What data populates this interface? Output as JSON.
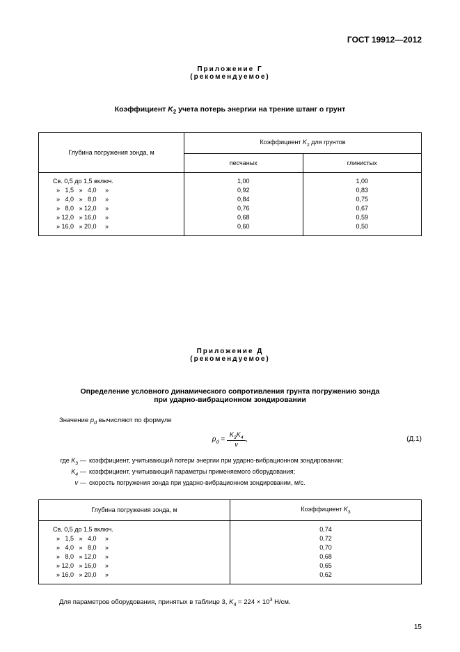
{
  "doc_header": "ГОСТ 19912—2012",
  "appendix_g": {
    "title": "Приложение Г",
    "subtitle": "(рекомендуемое)",
    "section_title_pre": "Коэффициент ",
    "section_title_var": "K",
    "section_title_sub": "2",
    "section_title_post": " учета потерь энергии на трение штанг о грунт",
    "table": {
      "col1_header": "Глубина погружения зонда, м",
      "col_group_pre": "Коэффициент ",
      "col_group_var": "K",
      "col_group_sub": "2",
      "col_group_post": " для грунтов",
      "sub_col_a": "песчаных",
      "sub_col_b": "глинистых",
      "rows": [
        {
          "depth": "Св. 0,5 до 1,5 включ.",
          "a": "1,00",
          "b": "1,00"
        },
        {
          "depth": "  »   1,5   »   4,0     »",
          "a": "0,92",
          "b": "0,83"
        },
        {
          "depth": "  »   4,0   »   8,0     »",
          "a": "0,84",
          "b": "0,75"
        },
        {
          "depth": "  »   8,0   » 12,0     »",
          "a": "0,76",
          "b": "0,67"
        },
        {
          "depth": "  » 12,0   » 16,0     »",
          "a": "0,68",
          "b": "0,59"
        },
        {
          "depth": "  » 16,0   » 20,0     »",
          "a": "0,60",
          "b": "0,50"
        }
      ]
    }
  },
  "appendix_d": {
    "title": "Приложение Д",
    "subtitle": "(рекомендуемое)",
    "section_title_line1": "Определение условного динамического сопротивления грунта погружению зонда",
    "section_title_line2": "при ударно-вибрационном зондировании",
    "para_intro_pre": "Значение ",
    "para_intro_var": "p",
    "para_intro_sub": "d",
    "para_intro_post": " вычисляют по формуле",
    "formula_lhs_var": "p",
    "formula_lhs_sub": "d",
    "formula_eq": " = ",
    "formula_num_a": "K",
    "formula_num_a_sub": "3",
    "formula_num_b": "K",
    "formula_num_b_sub": "4",
    "formula_den": "v",
    "formula_comma": ",",
    "formula_label": "(Д.1)",
    "where": [
      {
        "label_pre": "где ",
        "var": "K",
        "sub": "3",
        "dash": "—",
        "text": "коэффициент, учитывающий потери энергии при ударно-вибрационном зондировании;"
      },
      {
        "label_pre": "",
        "var": "K",
        "sub": "4",
        "dash": "—",
        "text": "коэффициент, учитывающий параметры применяемого оборудования;"
      },
      {
        "label_pre": "",
        "var": "v",
        "sub": "",
        "dash": "—",
        "text": "скорость погружения зонда при ударно-вибрационном зондировании, м/с."
      }
    ],
    "table": {
      "col1_header": "Глубина погружения зонда, м",
      "col2_pre": "Коэффициент ",
      "col2_var": "K",
      "col2_sub": "3",
      "rows": [
        {
          "depth": "Св. 0,5 до 1,5 включ.",
          "k": "0,74"
        },
        {
          "depth": "  »   1,5   »   4,0     »",
          "k": "0,72"
        },
        {
          "depth": "  »   4,0   »   8,0     »",
          "k": "0,70"
        },
        {
          "depth": "  »   8,0   » 12,0     »",
          "k": "0,68"
        },
        {
          "depth": "  » 12,0   » 16,0     »",
          "k": "0,65"
        },
        {
          "depth": "  » 16,0   » 20,0     »",
          "k": "0,62"
        }
      ]
    },
    "footer_note_pre": "Для параметров оборудования, принятых в таблице 3, ",
    "footer_note_var": "K",
    "footer_note_sub": "4",
    "footer_note_post1": " = 224 × 10",
    "footer_note_sup": "3",
    "footer_note_post2": " Н/см."
  },
  "page_number": "15"
}
